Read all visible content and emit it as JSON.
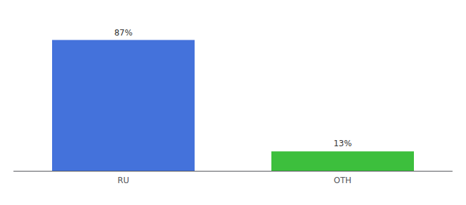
{
  "chart_data": {
    "type": "bar",
    "categories": [
      "RU",
      "OTH"
    ],
    "values": [
      87,
      13
    ],
    "value_labels": [
      "87%",
      "13%"
    ],
    "data_labels": true,
    "colors": [
      "#4472db",
      "#3dbf3d"
    ],
    "ylim": [
      0,
      100
    ],
    "tick_labels": "x",
    "grid": false
  }
}
